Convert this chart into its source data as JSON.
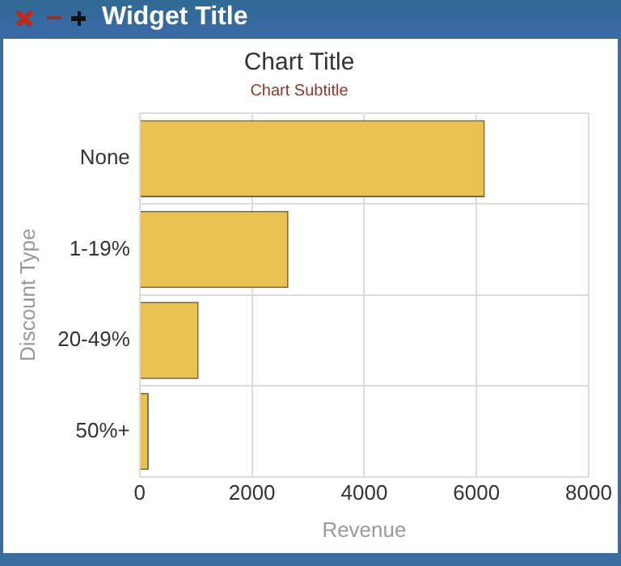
{
  "chart_data": {
    "type": "bar",
    "orientation": "horizontal",
    "title": "Chart Title",
    "subtitle": "Chart Subtitle",
    "xlabel": "Revenue",
    "ylabel": "Discount Type",
    "annotations": [
      "Widget Title"
    ],
    "categories": [
      "None",
      "1-19%",
      "20-49%",
      "50%+"
    ],
    "values": [
      6150,
      2650,
      1050,
      160
    ],
    "color": "#e8c14e",
    "xlim": [
      0,
      8000
    ],
    "xticks": [
      0,
      2000,
      4000,
      6000,
      8000
    ],
    "grid": true,
    "legend": false
  }
}
